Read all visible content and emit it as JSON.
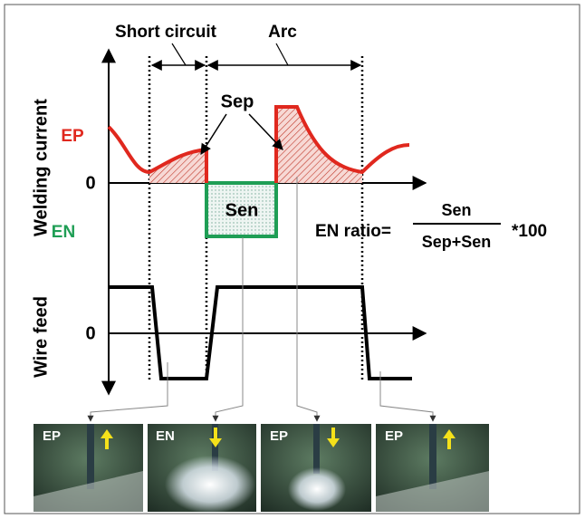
{
  "labels": {
    "short_circuit": "Short circuit",
    "arc": "Arc",
    "welding_current": "Welding current",
    "wire_feed": "Wire feed",
    "ep": "EP",
    "en": "EN",
    "current_zero": "0",
    "wire_zero": "0",
    "sep": "Sep",
    "sen": "Sen"
  },
  "formula": {
    "lhs": "EN ratio=",
    "numerator": "Sen",
    "denominator": "Sep+Sen",
    "multiplier": "*100"
  },
  "photos": [
    {
      "label": "EP"
    },
    {
      "label": "EN"
    },
    {
      "label": "EP"
    },
    {
      "label": "EP"
    }
  ]
}
